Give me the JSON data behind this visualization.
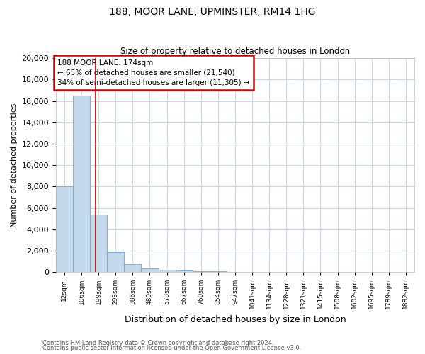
{
  "title1": "188, MOOR LANE, UPMINSTER, RM14 1HG",
  "title2": "Size of property relative to detached houses in London",
  "xlabel": "Distribution of detached houses by size in London",
  "ylabel": "Number of detached properties",
  "categories": [
    "12sqm",
    "106sqm",
    "199sqm",
    "293sqm",
    "386sqm",
    "480sqm",
    "573sqm",
    "667sqm",
    "760sqm",
    "854sqm",
    "947sqm",
    "1041sqm",
    "1134sqm",
    "1228sqm",
    "1321sqm",
    "1415sqm",
    "1508sqm",
    "1602sqm",
    "1695sqm",
    "1789sqm",
    "1882sqm"
  ],
  "values": [
    8050,
    16500,
    5400,
    1850,
    750,
    350,
    210,
    160,
    120,
    80,
    0,
    0,
    0,
    0,
    0,
    0,
    0,
    0,
    0,
    0,
    0
  ],
  "bar_color": "#c5d9ed",
  "bar_edge_color": "#6fa8d4",
  "grid_color": "#c8d8e8",
  "annotation_text": "188 MOOR LANE: 174sqm\n← 65% of detached houses are smaller (21,540)\n34% of semi-detached houses are larger (11,305) →",
  "vline_x": 1.82,
  "vline_color": "#aa0000",
  "annotation_box_color": "#cc0000",
  "ylim": [
    0,
    20000
  ],
  "yticks": [
    0,
    2000,
    4000,
    6000,
    8000,
    10000,
    12000,
    14000,
    16000,
    18000,
    20000
  ],
  "footer1": "Contains HM Land Registry data © Crown copyright and database right 2024.",
  "footer2": "Contains public sector information licensed under the Open Government Licence v3.0."
}
